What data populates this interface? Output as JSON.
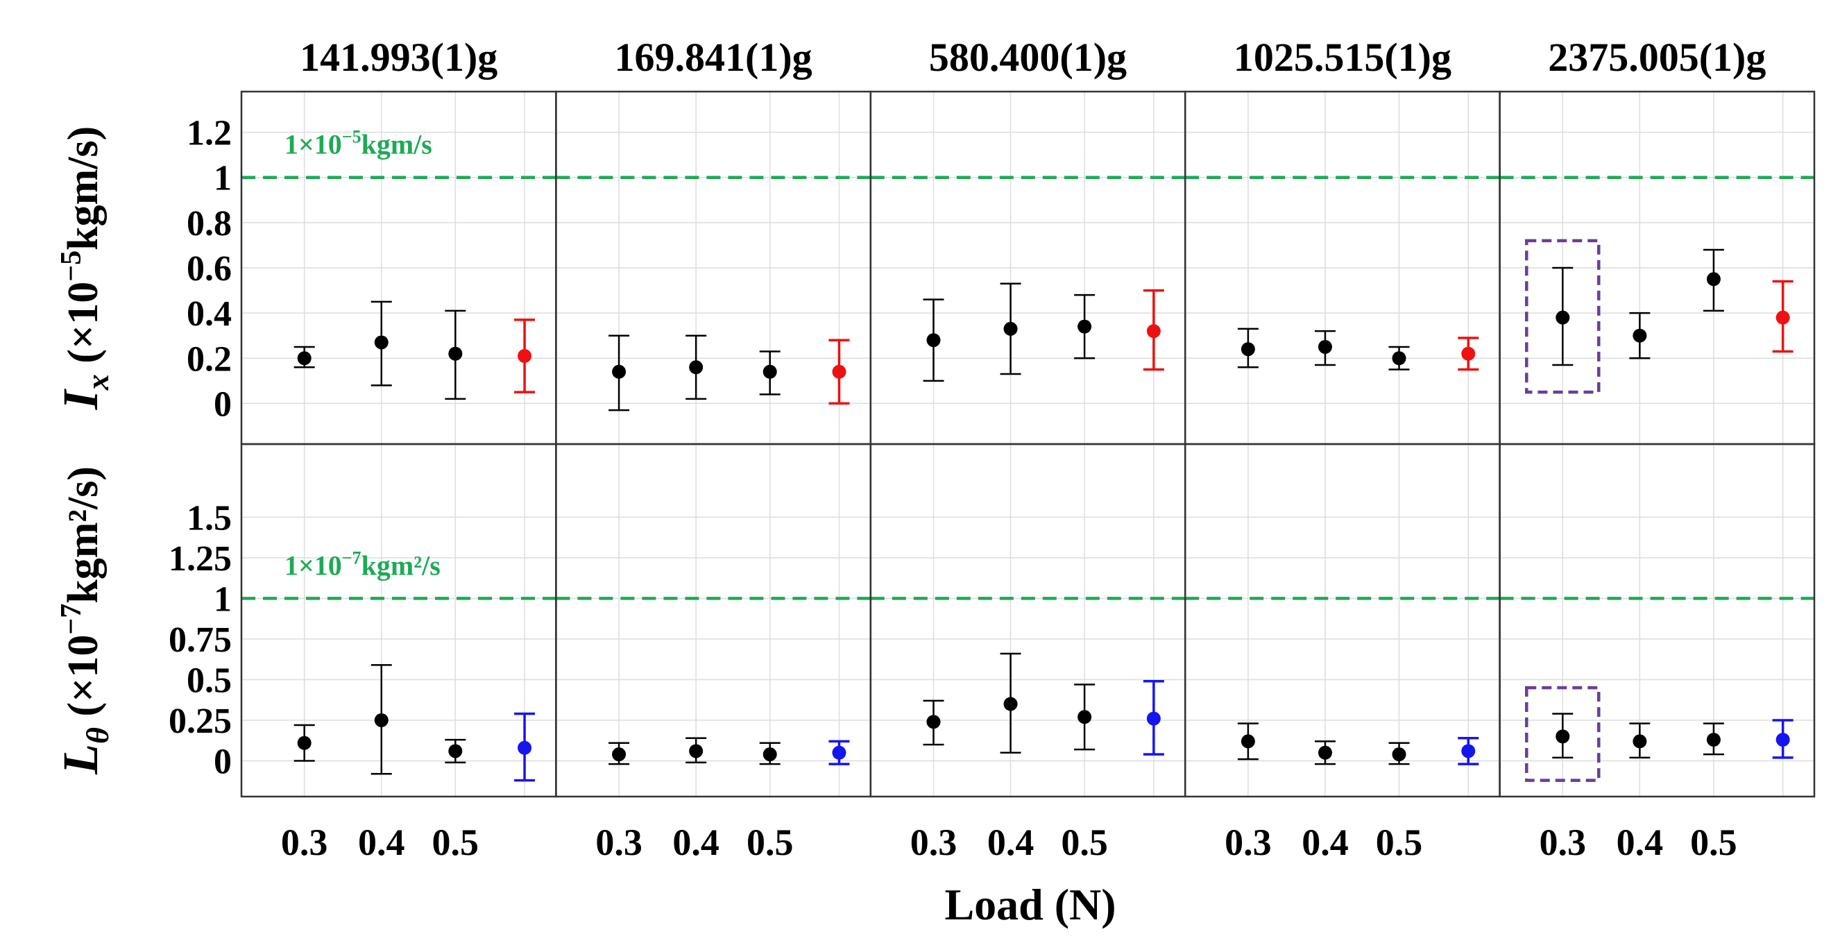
{
  "chart_data": {
    "type": "scatter",
    "subtype": "errorbar-small-multiples",
    "panel_titles": [
      "141.993(1)g",
      "169.841(1)g",
      "580.400(1)g",
      "1025.515(1)g",
      "2375.005(1)g"
    ],
    "x_categories": [
      "0.3",
      "0.4",
      "0.5"
    ],
    "xlabel": "Load (N)",
    "colors": {
      "measured": "#000000",
      "mean_top": "#ee1111",
      "mean_bottom": "#1515ee",
      "threshold": "#1eaa55",
      "highlight_box": "#6a3d9a",
      "grid": "#dddddd",
      "frame": "#333333"
    },
    "rows": [
      {
        "name": "impulse",
        "ylabel_symbol": "I",
        "ylabel_sub": "x",
        "ylabel_unit_pre": " (×10",
        "ylabel_unit_exp": "−5",
        "ylabel_unit_post": "kgm/s)",
        "ylim": [
          -0.18,
          1.38
        ],
        "yticks": [
          0,
          0.2,
          0.4,
          0.6,
          0.8,
          1,
          1.2
        ],
        "ytick_labels": [
          "0",
          "0.2",
          "0.4",
          "0.6",
          "0.8",
          "1",
          "1.2"
        ],
        "threshold": {
          "value": 1.0,
          "label_pre": "1×10",
          "label_exp": "−5",
          "label_post": "kgm/s"
        },
        "panels": [
          {
            "points": [
              {
                "x": "0.3",
                "y": 0.2,
                "lo": 0.16,
                "hi": 0.25
              },
              {
                "x": "0.4",
                "y": 0.27,
                "lo": 0.08,
                "hi": 0.45
              },
              {
                "x": "0.5",
                "y": 0.22,
                "lo": 0.02,
                "hi": 0.41
              }
            ],
            "mean": {
              "y": 0.21,
              "lo": 0.05,
              "hi": 0.37
            }
          },
          {
            "points": [
              {
                "x": "0.3",
                "y": 0.14,
                "lo": -0.03,
                "hi": 0.3
              },
              {
                "x": "0.4",
                "y": 0.16,
                "lo": 0.02,
                "hi": 0.3
              },
              {
                "x": "0.5",
                "y": 0.14,
                "lo": 0.04,
                "hi": 0.23
              }
            ],
            "mean": {
              "y": 0.14,
              "lo": 0.0,
              "hi": 0.28
            }
          },
          {
            "points": [
              {
                "x": "0.3",
                "y": 0.28,
                "lo": 0.1,
                "hi": 0.46
              },
              {
                "x": "0.4",
                "y": 0.33,
                "lo": 0.13,
                "hi": 0.53
              },
              {
                "x": "0.5",
                "y": 0.34,
                "lo": 0.2,
                "hi": 0.48
              }
            ],
            "mean": {
              "y": 0.32,
              "lo": 0.15,
              "hi": 0.5
            }
          },
          {
            "points": [
              {
                "x": "0.3",
                "y": 0.24,
                "lo": 0.16,
                "hi": 0.33
              },
              {
                "x": "0.4",
                "y": 0.25,
                "lo": 0.17,
                "hi": 0.32
              },
              {
                "x": "0.5",
                "y": 0.2,
                "lo": 0.15,
                "hi": 0.25
              }
            ],
            "mean": {
              "y": 0.22,
              "lo": 0.15,
              "hi": 0.29
            }
          },
          {
            "points": [
              {
                "x": "0.3",
                "y": 0.38,
                "lo": 0.17,
                "hi": 0.6
              },
              {
                "x": "0.4",
                "y": 0.3,
                "lo": 0.2,
                "hi": 0.4
              },
              {
                "x": "0.5",
                "y": 0.55,
                "lo": 0.41,
                "hi": 0.68
              }
            ],
            "mean": {
              "y": 0.38,
              "lo": 0.23,
              "hi": 0.54
            },
            "highlight": {
              "x": "0.3",
              "lo": 0.05,
              "hi": 0.72
            }
          }
        ]
      },
      {
        "name": "angular-momentum",
        "ylabel_symbol": "L",
        "ylabel_sub": "θ",
        "ylabel_unit_pre": " (×10",
        "ylabel_unit_exp": "−7",
        "ylabel_unit_post": "kgm²/s)",
        "ylim": [
          -0.22,
          1.95
        ],
        "yticks": [
          0,
          0.25,
          0.5,
          0.75,
          1,
          1.25,
          1.5
        ],
        "ytick_labels": [
          "0",
          "0.25",
          "0.5",
          "0.75",
          "1",
          "1.25",
          "1.5"
        ],
        "threshold": {
          "value": 1.0,
          "label_pre": "1×10",
          "label_exp": "−7",
          "label_post": "kgm²/s"
        },
        "panels": [
          {
            "points": [
              {
                "x": "0.3",
                "y": 0.11,
                "lo": 0.0,
                "hi": 0.22
              },
              {
                "x": "0.4",
                "y": 0.25,
                "lo": -0.08,
                "hi": 0.59
              },
              {
                "x": "0.5",
                "y": 0.06,
                "lo": -0.01,
                "hi": 0.13
              }
            ],
            "mean": {
              "y": 0.08,
              "lo": -0.12,
              "hi": 0.29
            }
          },
          {
            "points": [
              {
                "x": "0.3",
                "y": 0.04,
                "lo": -0.02,
                "hi": 0.11
              },
              {
                "x": "0.4",
                "y": 0.06,
                "lo": -0.01,
                "hi": 0.14
              },
              {
                "x": "0.5",
                "y": 0.04,
                "lo": -0.02,
                "hi": 0.11
              }
            ],
            "mean": {
              "y": 0.05,
              "lo": -0.02,
              "hi": 0.12
            }
          },
          {
            "points": [
              {
                "x": "0.3",
                "y": 0.24,
                "lo": 0.1,
                "hi": 0.37
              },
              {
                "x": "0.4",
                "y": 0.35,
                "lo": 0.05,
                "hi": 0.66
              },
              {
                "x": "0.5",
                "y": 0.27,
                "lo": 0.07,
                "hi": 0.47
              }
            ],
            "mean": {
              "y": 0.26,
              "lo": 0.04,
              "hi": 0.49
            }
          },
          {
            "points": [
              {
                "x": "0.3",
                "y": 0.12,
                "lo": 0.01,
                "hi": 0.23
              },
              {
                "x": "0.4",
                "y": 0.05,
                "lo": -0.02,
                "hi": 0.12
              },
              {
                "x": "0.5",
                "y": 0.04,
                "lo": -0.02,
                "hi": 0.11
              }
            ],
            "mean": {
              "y": 0.06,
              "lo": -0.02,
              "hi": 0.14
            }
          },
          {
            "points": [
              {
                "x": "0.3",
                "y": 0.15,
                "lo": 0.02,
                "hi": 0.29
              },
              {
                "x": "0.4",
                "y": 0.12,
                "lo": 0.02,
                "hi": 0.23
              },
              {
                "x": "0.5",
                "y": 0.13,
                "lo": 0.04,
                "hi": 0.23
              }
            ],
            "mean": {
              "y": 0.13,
              "lo": 0.02,
              "hi": 0.25
            },
            "highlight": {
              "x": "0.3",
              "lo": -0.12,
              "hi": 0.45
            }
          }
        ]
      }
    ]
  }
}
